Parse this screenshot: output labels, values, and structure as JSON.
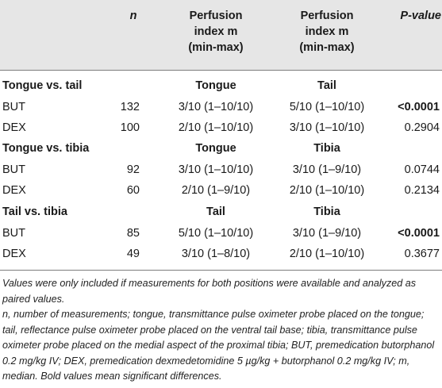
{
  "headers": {
    "n": "n",
    "perfusion1": [
      "Perfusion",
      "index m",
      "(min-max)"
    ],
    "perfusion2": [
      "Perfusion",
      "index m",
      "(min-max)"
    ],
    "pvalue": "P-value"
  },
  "sections": [
    {
      "title": "Tongue vs. tail",
      "col1": "Tongue",
      "col2": "Tail",
      "rows": [
        {
          "group": "BUT",
          "n": "132",
          "v1": "3/10 (1–10/10)",
          "v2": "5/10 (1–10/10)",
          "p": "<0.0001",
          "p_bold": true
        },
        {
          "group": "DEX",
          "n": "100",
          "v1": "2/10 (1–10/10)",
          "v2": "3/10 (1–10/10)",
          "p": "0.2904",
          "p_bold": false
        }
      ]
    },
    {
      "title": "Tongue vs. tibia",
      "col1": "Tongue",
      "col2": "Tibia",
      "rows": [
        {
          "group": "BUT",
          "n": "92",
          "v1": "3/10 (1–10/10)",
          "v2": "3/10 (1–9/10)",
          "p": "0.0744",
          "p_bold": false
        },
        {
          "group": "DEX",
          "n": "60",
          "v1": "2/10 (1–9/10)",
          "v2": "2/10 (1–10/10)",
          "p": "0.2134",
          "p_bold": false
        }
      ]
    },
    {
      "title": "Tail vs. tibia",
      "col1": "Tail",
      "col2": "Tibia",
      "rows": [
        {
          "group": "BUT",
          "n": "85",
          "v1": "5/10 (1–10/10)",
          "v2": "3/10 (1–9/10)",
          "p": "<0.0001",
          "p_bold": true
        },
        {
          "group": "DEX",
          "n": "49",
          "v1": "3/10 (1–8/10)",
          "v2": "2/10 (1–10/10)",
          "p": "0.3677",
          "p_bold": false
        }
      ]
    }
  ],
  "footnotes": {
    "note1": "Values were only included if measurements for both positions were available and analyzed as paired values.",
    "note2": "n, number of measurements; tongue, transmittance pulse oximeter probe placed on the tongue; tail, reflectance pulse oximeter probe placed on the ventral tail base; tibia, transmittance pulse oximeter probe placed on the medial aspect of the proximal tibia; BUT, premedication butorphanol 0.2 mg/kg IV; DEX, premedication dexmedetomidine 5 µg/kg + butorphanol 0.2 mg/kg IV; m, median. Bold values mean significant differences."
  }
}
